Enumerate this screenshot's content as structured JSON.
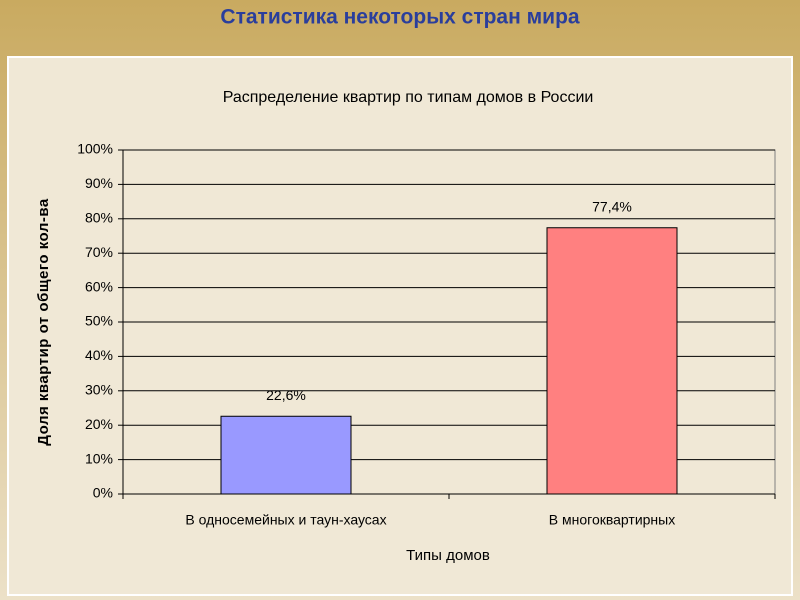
{
  "header": {
    "title": "Статистика некоторых стран мира"
  },
  "chart_data": {
    "type": "bar",
    "title": "Распределение квартир по типам домов в России",
    "x_label": "Типы домов",
    "y_label": "Доля квартир от общего кол-ва",
    "categories": [
      "В односемейных и таун-хаусах",
      "В многоквартирных"
    ],
    "values": [
      22.6,
      77.4
    ],
    "value_labels": [
      "22,6%",
      "77,4%"
    ],
    "colors": [
      "#9999ff",
      "#ff8080"
    ],
    "ylim": [
      0,
      100
    ],
    "yticks": [
      {
        "value": 0,
        "label": "0%"
      },
      {
        "value": 10,
        "label": "10%"
      },
      {
        "value": 20,
        "label": "20%"
      },
      {
        "value": 30,
        "label": "30%"
      },
      {
        "value": 40,
        "label": "40%"
      },
      {
        "value": 50,
        "label": "50%"
      },
      {
        "value": 60,
        "label": "60%"
      },
      {
        "value": 70,
        "label": "70%"
      },
      {
        "value": 80,
        "label": "80%"
      },
      {
        "value": 90,
        "label": "90%"
      },
      {
        "value": 100,
        "label": "100%"
      }
    ],
    "grid": true
  }
}
